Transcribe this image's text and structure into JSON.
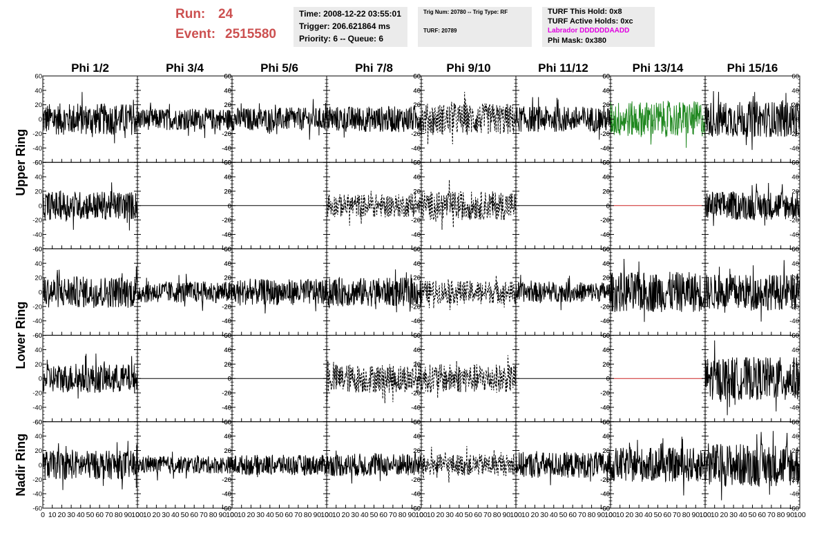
{
  "header": {
    "run_label": "Run:",
    "run_value": "24",
    "event_label": "Event:",
    "event_value": "2515580",
    "time_line": "Time: 2008-12-22 03:55:01",
    "trigger_line": "Trigger: 206.621864 ms",
    "priority_line": "Priority: 6 -- Queue: 6",
    "trig_num_line": "Trig Num: 20780 -- Trig Type: RF",
    "turf_line": "TURF: 20789",
    "turf_this_hold": "TURF This Hold: 0x8",
    "turf_active_holds": "TURF Active Holds: 0xc",
    "labrador_line": "Labrador DDDDDDAADD",
    "phi_mask_line": "Phi Mask: 0x380",
    "labrador_color": "#e000e0",
    "run_color": "#cc5050"
  },
  "chart_data": {
    "type": "line",
    "title": "",
    "column_titles": [
      "Phi 1/2",
      "Phi 3/4",
      "Phi 5/6",
      "Phi 7/8",
      "Phi 9/10",
      "Phi 11/12",
      "Phi 13/14",
      "Phi 15/16"
    ],
    "ring_labels": [
      "Upper Ring",
      "Lower Ring",
      "Nadir Ring"
    ],
    "xlim": [
      0,
      100
    ],
    "ylim": [
      -60,
      60
    ],
    "x_tick_labels": [
      "0",
      "10",
      "20",
      "30",
      "40",
      "50",
      "60",
      "70",
      "80",
      "90",
      "100"
    ],
    "y_tick_labels": [
      "-60",
      "-40",
      "-20",
      "0",
      "20",
      "40",
      "60"
    ],
    "rows": [
      {
        "ring": "Upper Ring",
        "panels": [
          {
            "style": "solid",
            "color": "#000000",
            "amplitude": 22,
            "offset": 0
          },
          {
            "style": "solid",
            "color": "#000000",
            "amplitude": 15,
            "offset": 0
          },
          {
            "style": "solid",
            "color": "#000000",
            "amplitude": 16,
            "offset": 0
          },
          {
            "style": "solid",
            "color": "#000000",
            "amplitude": 18,
            "offset": 0
          },
          {
            "style": "dashed",
            "color": "#000000",
            "amplitude": 22,
            "offset": 0
          },
          {
            "style": "solid",
            "color": "#000000",
            "amplitude": 18,
            "offset": 0
          },
          {
            "style": "solid",
            "color": "#208820",
            "amplitude": 25,
            "offset": 0
          },
          {
            "style": "solid",
            "color": "#000000",
            "amplitude": 25,
            "offset": 0
          }
        ]
      },
      {
        "ring": "Upper Ring",
        "panels": [
          {
            "style": "solid",
            "color": "#000000",
            "amplitude": 20,
            "offset": 0
          },
          {
            "style": "flat",
            "color": "#000000",
            "amplitude": 0,
            "offset": 0
          },
          {
            "style": "flat",
            "color": "#000000",
            "amplitude": 0,
            "offset": 0
          },
          {
            "style": "dashed",
            "color": "#000000",
            "amplitude": 16,
            "offset": 0
          },
          {
            "style": "dashed",
            "color": "#000000",
            "amplitude": 20,
            "offset": 0
          },
          {
            "style": "flat",
            "color": "#000000",
            "amplitude": 0,
            "offset": 0
          },
          {
            "style": "flat",
            "color": "#cc2020",
            "amplitude": 0,
            "offset": 0
          },
          {
            "style": "solid",
            "color": "#000000",
            "amplitude": 20,
            "offset": 0
          }
        ]
      },
      {
        "ring": "Lower Ring",
        "panels": [
          {
            "style": "solid",
            "color": "#000000",
            "amplitude": 22,
            "offset": 0
          },
          {
            "style": "solid",
            "color": "#000000",
            "amplitude": 15,
            "offset": 0
          },
          {
            "style": "solid",
            "color": "#000000",
            "amplitude": 18,
            "offset": 0
          },
          {
            "style": "solid",
            "color": "#000000",
            "amplitude": 20,
            "offset": 0
          },
          {
            "style": "dashed",
            "color": "#000000",
            "amplitude": 16,
            "offset": 0
          },
          {
            "style": "solid",
            "color": "#000000",
            "amplitude": 14,
            "offset": 0
          },
          {
            "style": "solid",
            "color": "#000000",
            "amplitude": 28,
            "offset": 0
          },
          {
            "style": "solid",
            "color": "#000000",
            "amplitude": 25,
            "offset": 0
          }
        ]
      },
      {
        "ring": "Lower Ring",
        "panels": [
          {
            "style": "solid",
            "color": "#000000",
            "amplitude": 20,
            "offset": 0
          },
          {
            "style": "flat",
            "color": "#000000",
            "amplitude": 0,
            "offset": 0
          },
          {
            "style": "flat",
            "color": "#000000",
            "amplitude": 0,
            "offset": 0
          },
          {
            "style": "dashed",
            "color": "#000000",
            "amplitude": 20,
            "offset": 0
          },
          {
            "style": "dashed",
            "color": "#000000",
            "amplitude": 20,
            "offset": 0
          },
          {
            "style": "flat",
            "color": "#000000",
            "amplitude": 0,
            "offset": 0
          },
          {
            "style": "flat",
            "color": "#cc2020",
            "amplitude": 0,
            "offset": 0
          },
          {
            "style": "solid",
            "color": "#000000",
            "amplitude": 30,
            "offset": 0
          }
        ]
      },
      {
        "ring": "Nadir Ring",
        "panels": [
          {
            "style": "solid",
            "color": "#000000",
            "amplitude": 20,
            "offset": 0
          },
          {
            "style": "solid",
            "color": "#000000",
            "amplitude": 12,
            "offset": 0
          },
          {
            "style": "solid",
            "color": "#000000",
            "amplitude": 14,
            "offset": 0
          },
          {
            "style": "solid",
            "color": "#000000",
            "amplitude": 16,
            "offset": 0
          },
          {
            "style": "dashed",
            "color": "#000000",
            "amplitude": 15,
            "offset": 0
          },
          {
            "style": "solid",
            "color": "#000000",
            "amplitude": 18,
            "offset": 0
          },
          {
            "style": "solid",
            "color": "#000000",
            "amplitude": 24,
            "offset": 0
          },
          {
            "style": "solid",
            "color": "#000000",
            "amplitude": 30,
            "offset": 0
          }
        ]
      }
    ],
    "grid": false
  }
}
